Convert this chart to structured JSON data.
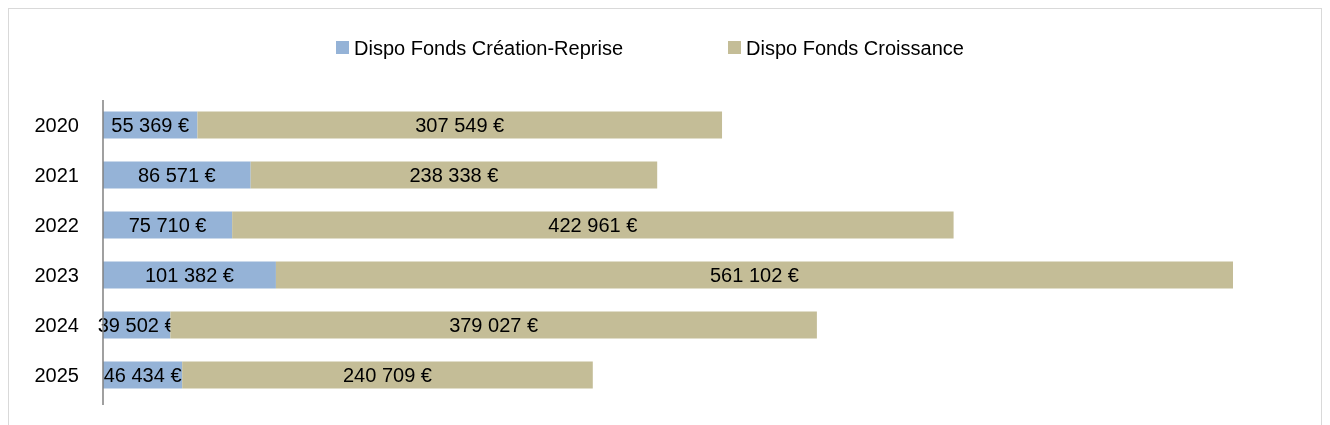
{
  "chart_data": {
    "type": "bar",
    "orientation": "horizontal",
    "stacked": true,
    "categories": [
      "2020",
      "2021",
      "2022",
      "2023",
      "2024",
      "2025"
    ],
    "series": [
      {
        "name": "Dispo Fonds Création-Reprise",
        "color": "#95b3d7",
        "values": [
          55369,
          86571,
          75710,
          101382,
          39502,
          46434
        ],
        "value_labels": [
          "55 369 €",
          "86 571 €",
          "75 710 €",
          "101 382 €",
          "39 502 €",
          "46 434 €"
        ]
      },
      {
        "name": "Dispo Fonds Croissance",
        "color": "#c4bd97",
        "values": [
          307549,
          238338,
          422961,
          561102,
          379027,
          240709
        ],
        "value_labels": [
          "307 549 €",
          "238 338 €",
          "422 961 €",
          "561 102 €",
          "379 027 €",
          "240 709 €"
        ]
      }
    ],
    "legend": "top"
  }
}
